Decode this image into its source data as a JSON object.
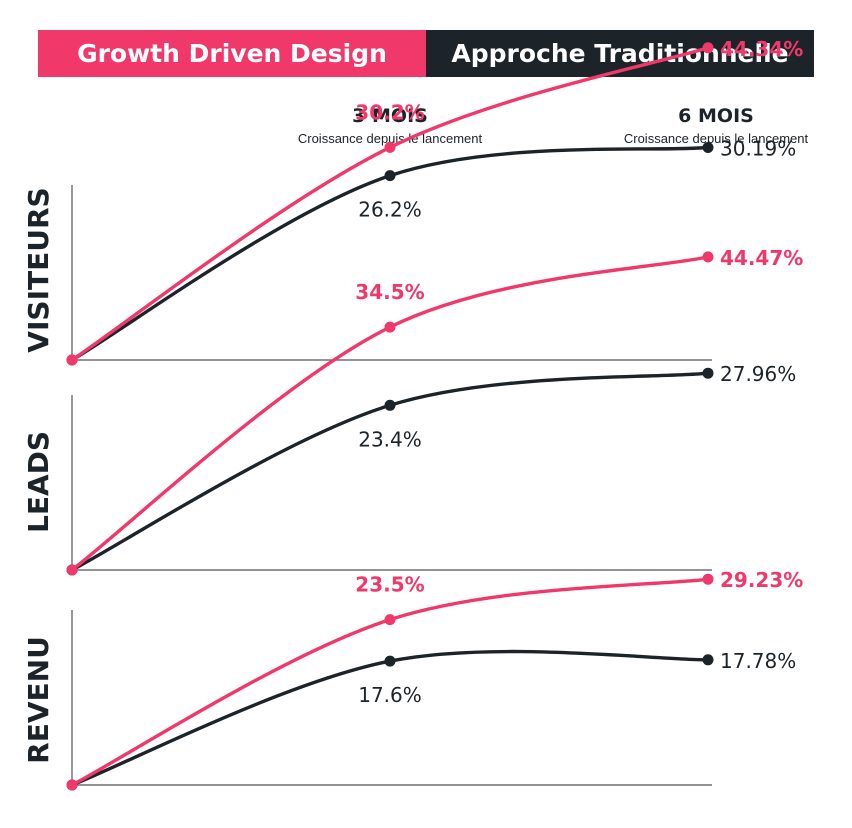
{
  "colors": {
    "gdd": "#f0386b",
    "traditional": "#1c2329",
    "axis": "#555555"
  },
  "legend": {
    "gdd": "Growth Driven Design",
    "traditional": "Approche Traditionnelle"
  },
  "columns": [
    {
      "title": "3 MOIS",
      "subtitle": "Croissance depuis le lancement"
    },
    {
      "title": "6 MOIS",
      "subtitle": "Croissance depuis le lancement"
    }
  ],
  "chart_data": {
    "type": "line",
    "x": [
      0,
      3,
      6
    ],
    "x_tick_labels": [
      "",
      "3 MOIS",
      "6 MOIS"
    ],
    "ylim": [
      0,
      50
    ],
    "grid": false,
    "legend_position": "top",
    "panels": [
      {
        "title": "VISITEURS",
        "series": [
          {
            "name": "Growth Driven Design",
            "values": [
              0,
              30.2,
              44.34
            ],
            "labels": [
              "",
              "30.2%",
              "44.34%"
            ]
          },
          {
            "name": "Approche Traditionnelle",
            "values": [
              0,
              26.2,
              30.19
            ],
            "labels": [
              "",
              "26.2%",
              "30.19%"
            ]
          }
        ]
      },
      {
        "title": "LEADS",
        "series": [
          {
            "name": "Growth Driven Design",
            "values": [
              0,
              34.5,
              44.47
            ],
            "labels": [
              "",
              "34.5%",
              "44.47%"
            ]
          },
          {
            "name": "Approche Traditionnelle",
            "values": [
              0,
              23.4,
              27.96
            ],
            "labels": [
              "",
              "23.4%",
              "27.96%"
            ]
          }
        ]
      },
      {
        "title": "REVENU",
        "series": [
          {
            "name": "Growth Driven Design",
            "values": [
              0,
              23.5,
              29.23
            ],
            "labels": [
              "",
              "23.5%",
              "29.23%"
            ]
          },
          {
            "name": "Approche Traditionnelle",
            "values": [
              0,
              17.6,
              17.78
            ],
            "labels": [
              "",
              "17.6%",
              "17.78%"
            ]
          }
        ]
      }
    ]
  }
}
